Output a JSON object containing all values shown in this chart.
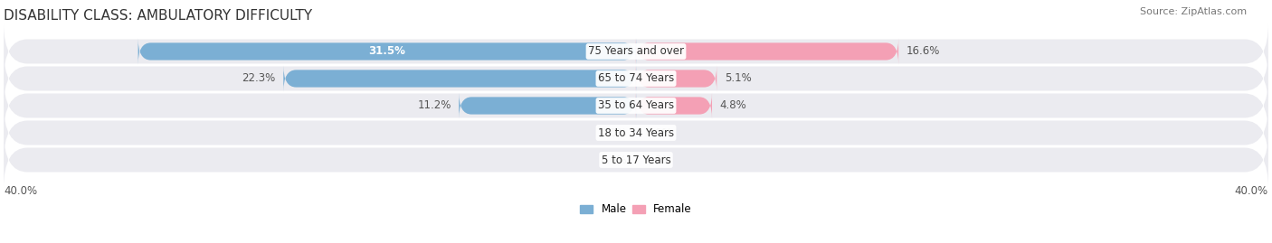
{
  "title": "DISABILITY CLASS: AMBULATORY DIFFICULTY",
  "source": "Source: ZipAtlas.com",
  "categories": [
    "5 to 17 Years",
    "18 to 34 Years",
    "35 to 64 Years",
    "65 to 74 Years",
    "75 Years and over"
  ],
  "male_values": [
    0.0,
    0.0,
    11.2,
    22.3,
    31.5
  ],
  "female_values": [
    0.0,
    0.0,
    4.8,
    5.1,
    16.6
  ],
  "male_color": "#7bafd4",
  "female_color": "#f4a0b5",
  "axis_max": 40.0,
  "axis_label_left": "40.0%",
  "axis_label_right": "40.0%",
  "title_fontsize": 11,
  "source_fontsize": 8,
  "label_fontsize": 8.5,
  "category_fontsize": 8.5,
  "bg_color": "#ffffff",
  "row_bg_color": "#ebebf0"
}
